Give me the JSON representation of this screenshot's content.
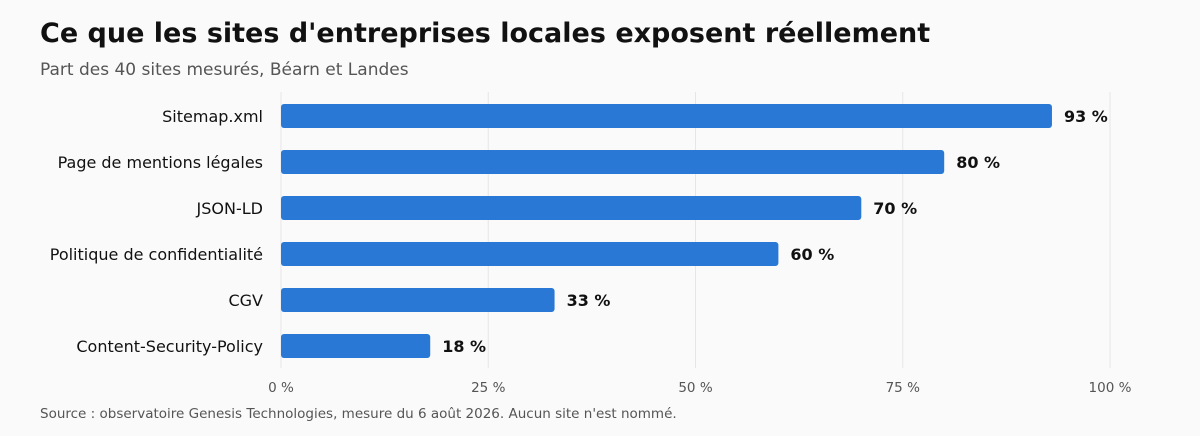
{
  "title": "Ce que les sites d'entreprises locales exposent réellement",
  "subtitle": "Part des 40 sites mesurés, Béarn et Landes",
  "source": "Source : observatoire Genesis Technologies, mesure du 6 août 2026. Aucun site n'est nommé.",
  "colors": {
    "bar": "#2a78d6",
    "grid": "#e6e6e6",
    "background": "#fafafa"
  },
  "chart_data": {
    "type": "bar",
    "orientation": "horizontal",
    "categories": [
      "Sitemap.xml",
      "Page de mentions légales",
      "JSON-LD",
      "Politique de confidentialité",
      "CGV",
      "Content-Security-Policy"
    ],
    "values": [
      93,
      80,
      70,
      60,
      33,
      18
    ],
    "value_labels": [
      "93 %",
      "80 %",
      "70 %",
      "60 %",
      "33 %",
      "18 %"
    ],
    "xlim": [
      0,
      100
    ],
    "ticks": [
      0,
      25,
      50,
      75,
      100
    ],
    "tick_labels": [
      "0 %",
      "25 %",
      "50 %",
      "75 %",
      "100 %"
    ],
    "grid": true
  }
}
